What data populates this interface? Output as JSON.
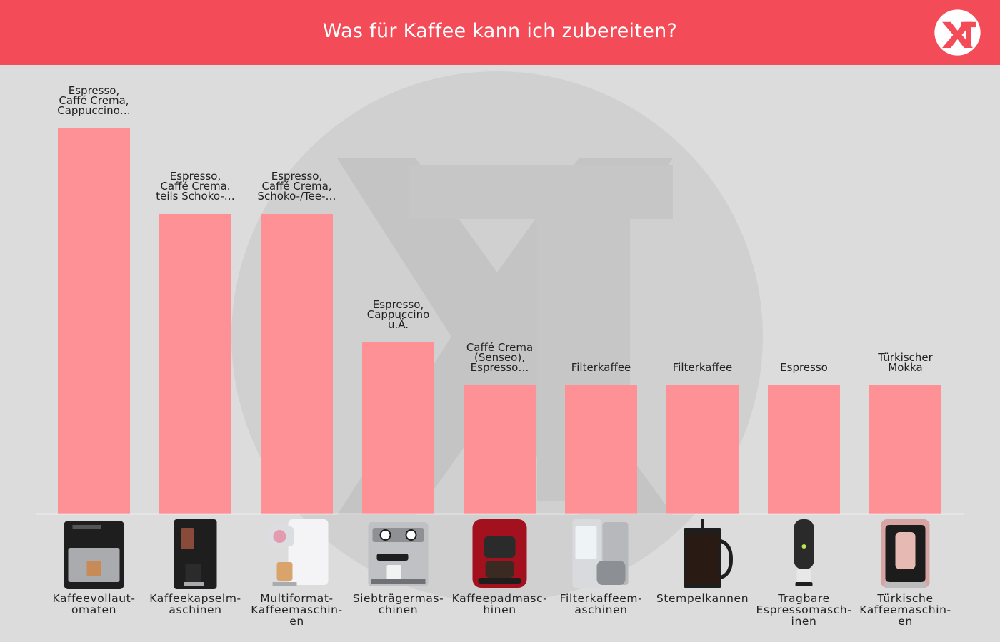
{
  "header": {
    "title": "Was für Kaffee kann ich zubereiten?",
    "accent_color": "#f44b58",
    "logo_icon": "xt-logo-icon"
  },
  "chart_data": {
    "type": "bar",
    "title": "Was für Kaffee kann ich zubereiten?",
    "xlabel": "",
    "ylabel": "",
    "ylim": [
      0,
      9
    ],
    "grid": false,
    "bar_color": "#fe9196",
    "categories": [
      [
        "Kaffeevollaut-",
        "omaten"
      ],
      [
        "Kaffeekapselm-",
        "aschinen"
      ],
      [
        "Multiformat-",
        "Kaffeemaschin-",
        "en"
      ],
      [
        "Siebträgermas-",
        "chinen"
      ],
      [
        "Kaffeepadmasc-",
        "hinen"
      ],
      [
        "Filterkaffeem-",
        "aschinen"
      ],
      [
        "Stempelkannen"
      ],
      [
        "Tragbare",
        "Espressomasch-",
        "inen"
      ],
      [
        "Türkische",
        "Kaffeemaschin-",
        "en"
      ]
    ],
    "values": [
      9,
      7,
      7,
      4,
      3,
      3,
      3,
      3,
      3
    ],
    "data_labels": [
      [
        "Espresso,",
        "Caffé Crema,",
        "Cappuccino…"
      ],
      [
        "Espresso,",
        "Caffé Crema.",
        "teils Schoko-…"
      ],
      [
        "Espresso,",
        "Caffé Crema,",
        "Schoko-/Tee-…"
      ],
      [
        "Espresso,",
        "Cappuccino",
        "u.Ä."
      ],
      [
        "Caffé Crema",
        "(Senseo),",
        "Espresso…"
      ],
      [
        "Filterkaffee"
      ],
      [
        "Filterkaffee"
      ],
      [
        "Espresso"
      ],
      [
        "Türkischer",
        "Mokka"
      ]
    ],
    "icons": [
      "espresso-machine-icon",
      "capsule-machine-icon",
      "multiformat-machine-icon",
      "portafilter-machine-icon",
      "pad-machine-icon",
      "filter-coffee-machine-icon",
      "french-press-icon",
      "portable-espresso-icon",
      "turkish-coffee-machine-icon"
    ]
  }
}
